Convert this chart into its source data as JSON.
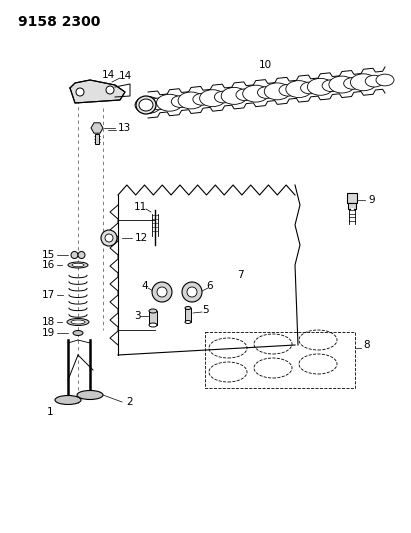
{
  "title": "9158 2300",
  "bg_color": "#ffffff",
  "line_color": "#000000",
  "title_fontsize": 10,
  "label_fontsize": 7.5,
  "fig_width": 4.11,
  "fig_height": 5.33,
  "dpi": 100
}
